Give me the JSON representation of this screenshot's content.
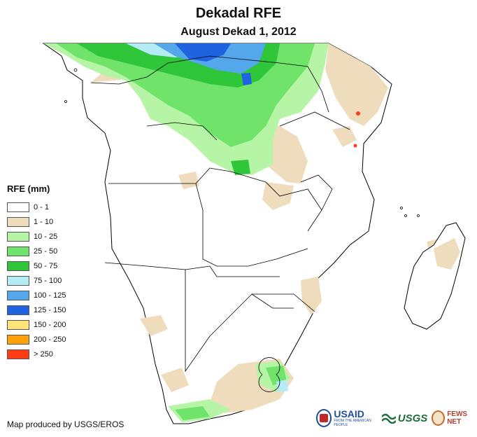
{
  "header": {
    "title": "Dekadal RFE",
    "subtitle": "August Dekad 1, 2012"
  },
  "legend": {
    "title": "RFE (mm)",
    "items": [
      {
        "label": "0 - 1",
        "color": "#ffffff"
      },
      {
        "label": "1 - 10",
        "color": "#efdcbc"
      },
      {
        "label": "10 - 25",
        "color": "#b5f5a5"
      },
      {
        "label": "25 - 50",
        "color": "#6fe36a"
      },
      {
        "label": "50 - 75",
        "color": "#2fc63a"
      },
      {
        "label": "75 - 100",
        "color": "#b4ecf6"
      },
      {
        "label": "100 - 125",
        "color": "#55a7ec"
      },
      {
        "label": "125 - 150",
        "color": "#1f63e0"
      },
      {
        "label": "150 - 200",
        "color": "#ffe27a"
      },
      {
        "label": "200 - 250",
        "color": "#ffa20a"
      },
      {
        "label": "> 250",
        "color": "#ff3c14"
      }
    ]
  },
  "footer": {
    "credit": "Map produced by USGS/EROS",
    "logos": {
      "usaid": "USAID",
      "usaid_tagline": "FROM THE AMERICAN PEOPLE",
      "usgs": "USGS",
      "fews": "FEWS NET"
    }
  }
}
